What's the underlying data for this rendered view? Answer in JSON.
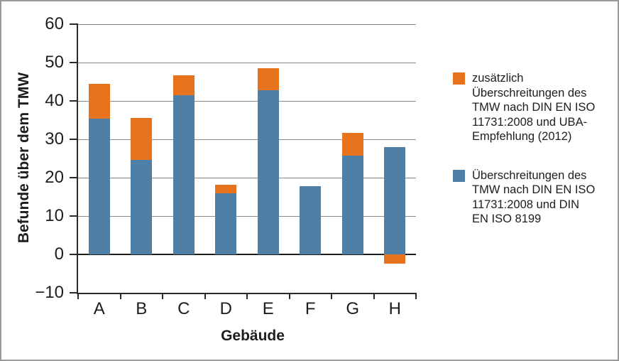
{
  "chart_data": {
    "type": "bar",
    "subtype": "stacked",
    "categories": [
      "A",
      "B",
      "C",
      "D",
      "E",
      "F",
      "G",
      "H"
    ],
    "series": [
      {
        "name": "Überschreitungen des TMW nach DIN EN ISO 11731:2008 und DIN EN ISO 8199",
        "color": "#4e7fa6",
        "values": [
          35.4,
          24.7,
          41.4,
          15.9,
          42.7,
          17.7,
          25.8,
          28.0
        ]
      },
      {
        "name": "zusätzlich Überschreitungen des TMW nach DIN EN ISO 11731:2008 und UBA-Empfehlung (2012)",
        "color": "#e8731e",
        "values": [
          9.1,
          10.8,
          5.3,
          2.2,
          5.8,
          0,
          5.9,
          -2.4
        ]
      }
    ],
    "stacked_totals": [
      44.5,
      35.5,
      46.7,
      18.1,
      48.5,
      17.7,
      31.7,
      28.0
    ],
    "title": "",
    "xlabel": "Gebäude",
    "ylabel": "Befunde über dem TMW",
    "ylim": [
      -10,
      60
    ],
    "yticks": [
      60,
      50,
      40,
      30,
      20,
      10,
      0,
      -10
    ],
    "ytick_labels": [
      "60",
      "50",
      "40",
      "30",
      "20",
      "10",
      "0",
      "−10"
    ],
    "grid": true,
    "legend_position": "right"
  },
  "legend": {
    "items": [
      {
        "label": "zusätzlich\nÜberschreitungen des\nTMW nach DIN EN ISO\n11731:2008 und UBA-\nEmpfehlung (2012)",
        "color": "#e8731e"
      },
      {
        "label": "Überschreitungen des\nTMW nach DIN EN ISO\n11731:2008 und DIN\nEN ISO 8199",
        "color": "#4e7fa6"
      }
    ]
  },
  "colors": {
    "bar_blue": "#4e7fa6",
    "bar_orange": "#e8731e",
    "gridline": "#8a8a8a",
    "zero_line": "#1d1d1b",
    "axis": "#2a2a2a",
    "frame_border": "#9a9a9a",
    "text": "#1d1d1b"
  }
}
